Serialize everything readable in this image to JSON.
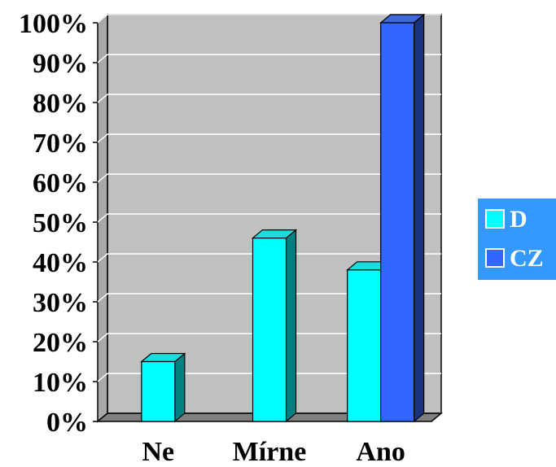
{
  "chart_data": {
    "type": "bar",
    "title": "",
    "xlabel": "",
    "ylabel": "",
    "categories": [
      "Ne",
      "Mírne",
      "Ano"
    ],
    "series": [
      {
        "name": "D",
        "values": [
          15,
          46,
          38
        ]
      },
      {
        "name": "CZ",
        "values": [
          0,
          0,
          100
        ]
      }
    ],
    "ylim": [
      0,
      100
    ],
    "yticks": [
      "0%",
      "10%",
      "20%",
      "30%",
      "40%",
      "50%",
      "60%",
      "70%",
      "80%",
      "90%",
      "100%"
    ],
    "grid": true,
    "legend_position": "right",
    "plot_background": "#c0c0c0",
    "colors": {
      "D": "#00ffff",
      "CZ": "#3366ff"
    }
  }
}
